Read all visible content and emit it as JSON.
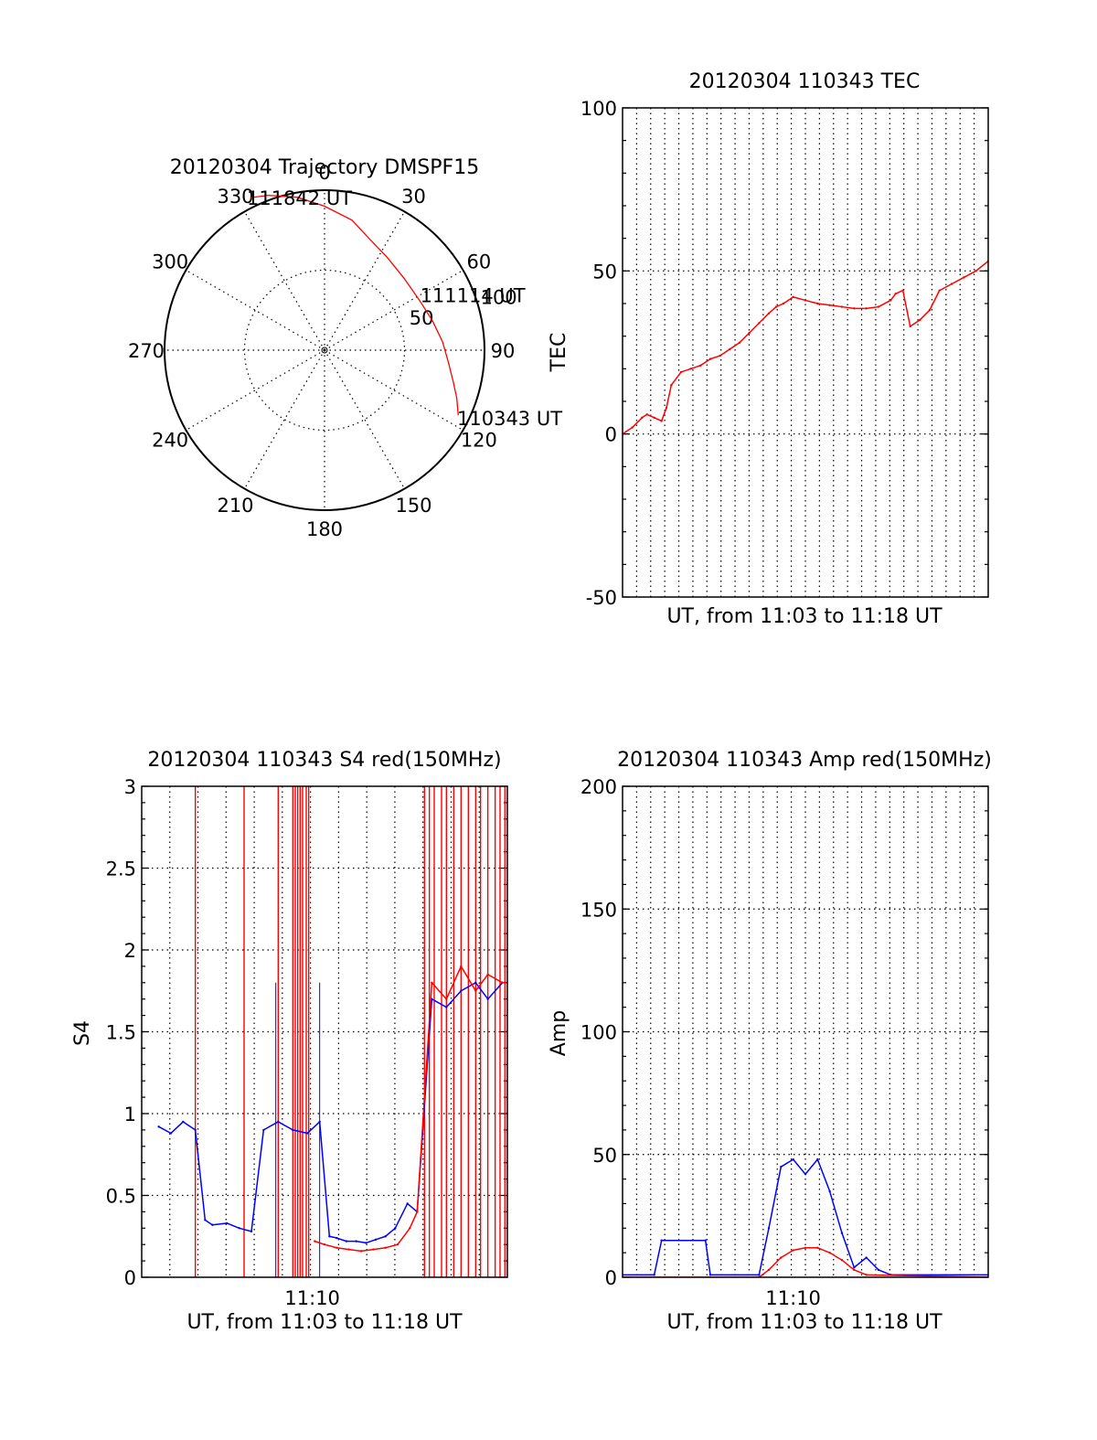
{
  "chart_data": [
    {
      "id": "polar",
      "type": "polar_trajectory",
      "title": "20120304 Trajectory DMSPF15",
      "azimuth_labels": [
        "0",
        "30",
        "60",
        "90",
        "120",
        "150",
        "180",
        "210",
        "240",
        "270",
        "300",
        "330"
      ],
      "radial_labels": [
        "50",
        "100"
      ],
      "radial_range": [
        0,
        100
      ],
      "trajectory_color": "#ff0000",
      "trajectory": [
        {
          "az": 116,
          "zen": 93
        },
        {
          "az": 110,
          "zen": 88
        },
        {
          "az": 104,
          "zen": 83
        },
        {
          "az": 96,
          "zen": 78
        },
        {
          "az": 86,
          "zen": 74
        },
        {
          "az": 75,
          "zen": 70
        },
        {
          "az": 62,
          "zen": 67
        },
        {
          "az": 48,
          "zen": 67
        },
        {
          "az": 34,
          "zen": 70
        },
        {
          "az": 22,
          "zen": 75
        },
        {
          "az": 12,
          "zen": 83
        },
        {
          "az": 0,
          "zen": 90
        },
        {
          "az": 350,
          "zen": 97
        },
        {
          "az": 340,
          "zen": 103
        },
        {
          "az": 334,
          "zen": 106
        }
      ],
      "annotations": [
        {
          "text": "110343 UT",
          "az": 117,
          "zen": 93
        },
        {
          "text": "111114 UT",
          "az": 60,
          "zen": 69
        },
        {
          "text": "111842 UT",
          "az": 333,
          "zen": 107
        }
      ]
    },
    {
      "id": "tec",
      "type": "line",
      "title": "20120304 110343 TEC",
      "xlabel": "UT, from 11:03 to 11:18 UT",
      "ylabel": "TEC",
      "xlim": [
        0,
        15
      ],
      "ylim": [
        -50,
        100
      ],
      "yticks": [
        "100",
        "50",
        "0",
        "-50"
      ],
      "ytick_values": [
        100,
        50,
        0,
        -50
      ],
      "xgrid_count": 26,
      "series": [
        {
          "name": "TEC",
          "color": "#ff0000",
          "x": [
            0.0,
            0.4,
            0.8,
            1.0,
            1.3,
            1.6,
            1.8,
            2.0,
            2.4,
            2.8,
            3.2,
            3.6,
            4.0,
            4.4,
            4.8,
            5.2,
            5.6,
            6.0,
            6.3,
            6.6,
            7.0,
            7.5,
            8.0,
            8.5,
            9.0,
            9.5,
            10.0,
            10.5,
            11.0,
            11.2,
            11.5,
            11.8,
            12.2,
            12.6,
            13.0,
            13.5,
            14.0,
            14.5,
            15.0
          ],
          "y": [
            0,
            2,
            5,
            6,
            5,
            4,
            8,
            15,
            19,
            20,
            21,
            23,
            24,
            26,
            28,
            31,
            34,
            37,
            39,
            40,
            42,
            41,
            40,
            39.5,
            39,
            38.5,
            38.5,
            39,
            41,
            43,
            44,
            33,
            35,
            38,
            44,
            46,
            48,
            50,
            53
          ]
        }
      ]
    },
    {
      "id": "s4",
      "type": "line",
      "title": "20120304 110343 S4 red(150MHz)",
      "xlabel": "UT, from 11:03 to 11:18 UT",
      "ylabel": "S4",
      "xlim": [
        0,
        15
      ],
      "ylim": [
        0,
        3
      ],
      "yticks": [
        "3",
        "2.5",
        "2",
        "1.5",
        "1",
        "0.5",
        "0"
      ],
      "ytick_values": [
        3,
        2.5,
        2,
        1.5,
        1,
        0.5,
        0
      ],
      "xticks": [
        "11:10"
      ],
      "xtick_values": [
        7
      ],
      "xgrid_count": 13,
      "series": [
        {
          "name": "blue",
          "color": "#0000ff",
          "x": [
            0.7,
            1.2,
            1.7,
            2.2,
            2.6,
            2.9,
            3.5,
            4.0,
            4.5,
            5.0,
            5.6,
            6.2,
            6.8,
            7.3,
            7.7,
            8.0,
            8.4,
            8.8,
            9.2,
            9.6,
            10.0,
            10.4,
            10.9,
            11.3,
            11.9,
            12.5,
            13.1,
            13.7,
            14.2,
            14.8
          ],
          "y": [
            0.92,
            0.88,
            0.95,
            0.9,
            0.35,
            0.32,
            0.33,
            0.3,
            0.28,
            0.9,
            0.95,
            0.9,
            0.88,
            0.95,
            0.25,
            0.24,
            0.22,
            0.22,
            0.21,
            0.23,
            0.25,
            0.3,
            0.45,
            0.4,
            1.7,
            1.65,
            1.75,
            1.8,
            1.7,
            1.8
          ]
        },
        {
          "name": "red",
          "color": "#ff0000",
          "x": [
            7.1,
            7.5,
            8.0,
            8.5,
            9.0,
            9.5,
            10.0,
            10.5,
            11.0,
            11.3,
            11.9,
            12.5,
            13.1,
            13.7,
            14.2,
            14.8
          ],
          "y": [
            0.22,
            0.2,
            0.18,
            0.17,
            0.16,
            0.17,
            0.18,
            0.2,
            0.3,
            0.4,
            1.8,
            1.7,
            1.9,
            1.75,
            1.85,
            1.8
          ]
        }
      ],
      "spikes_red_x": [
        2.2,
        4.2,
        5.6,
        6.2,
        6.3,
        6.4,
        6.5,
        6.6,
        6.75,
        6.85,
        11.6,
        11.8,
        12.0,
        12.3,
        12.5,
        12.8,
        13.1,
        13.4,
        13.7,
        13.9,
        14.2,
        14.5,
        14.7,
        14.9
      ],
      "spikes_blue_x": [
        5.5,
        7.3
      ]
    },
    {
      "id": "amp",
      "type": "line",
      "title": "20120304 110343 Amp red(150MHz)",
      "xlabel": "UT, from 11:03 to 11:18 UT",
      "ylabel": "Amp",
      "xlim": [
        0,
        15
      ],
      "ylim": [
        0,
        200
      ],
      "yticks": [
        "200",
        "150",
        "100",
        "50",
        "0"
      ],
      "ytick_values": [
        200,
        150,
        100,
        50,
        0
      ],
      "xticks": [
        "11:10"
      ],
      "xtick_values": [
        7
      ],
      "xgrid_count": 26,
      "series": [
        {
          "name": "blue",
          "color": "#0000ff",
          "x": [
            0.0,
            1.3,
            1.6,
            3.4,
            3.6,
            5.6,
            6.0,
            6.5,
            7.0,
            7.5,
            8.0,
            8.5,
            9.0,
            9.5,
            10.0,
            10.5,
            11.0,
            15.0
          ],
          "y": [
            1,
            1,
            15,
            15,
            1,
            1,
            20,
            45,
            48,
            42,
            48,
            35,
            18,
            4,
            8,
            3,
            1,
            1
          ]
        },
        {
          "name": "red",
          "color": "#ff0000",
          "x": [
            0.0,
            5.6,
            6.0,
            6.5,
            7.0,
            7.5,
            8.0,
            8.5,
            9.0,
            9.5,
            10.0,
            15.0
          ],
          "y": [
            0,
            0,
            3,
            8,
            11,
            12,
            12,
            10,
            7,
            3,
            1,
            0
          ]
        }
      ]
    }
  ]
}
